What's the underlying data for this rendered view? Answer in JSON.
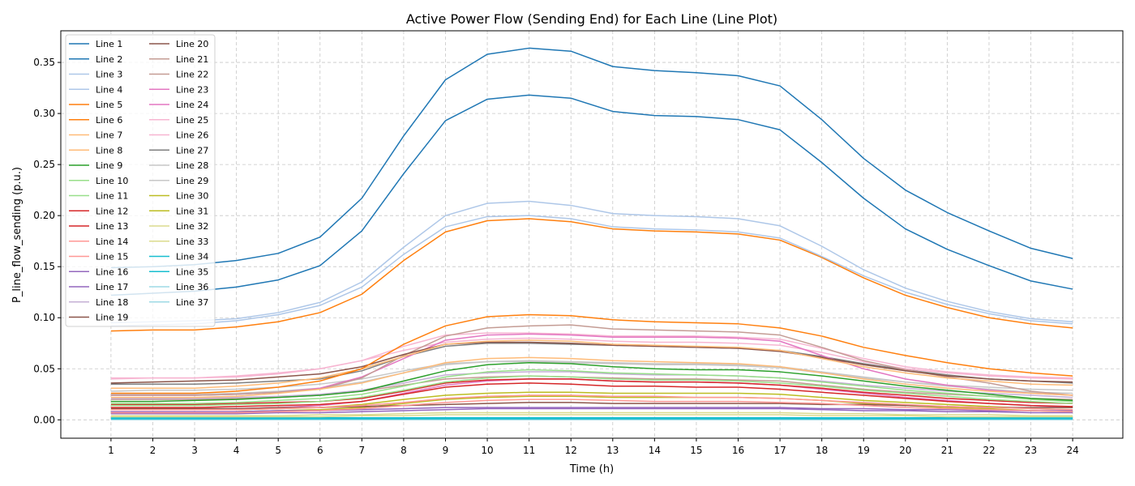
{
  "chart_data": {
    "type": "line",
    "title": "Active Power Flow (Sending End) for Each Line (Line Plot)",
    "xlabel": "Time (h)",
    "ylabel": "P_line_flow_sending (p.u.)",
    "xlim": [
      -0.2,
      25.2
    ],
    "ylim": [
      -0.018,
      0.381
    ],
    "x": [
      1,
      2,
      3,
      4,
      5,
      6,
      7,
      8,
      9,
      10,
      11,
      12,
      13,
      14,
      15,
      16,
      17,
      18,
      19,
      20,
      21,
      22,
      23,
      24
    ],
    "x_ticks": [
      1,
      2,
      3,
      4,
      5,
      6,
      7,
      8,
      9,
      10,
      11,
      12,
      13,
      14,
      15,
      16,
      17,
      18,
      19,
      20,
      21,
      22,
      23,
      24
    ],
    "y_ticks": [
      0.0,
      0.05,
      0.1,
      0.15,
      0.2,
      0.25,
      0.3,
      0.35
    ],
    "y_tick_labels": [
      "0.00",
      "0.05",
      "0.10",
      "0.15",
      "0.20",
      "0.25",
      "0.30",
      "0.35"
    ],
    "grid": true,
    "legend_position": "upper-left",
    "legend_columns": 2,
    "series": [
      {
        "name": "Line 1",
        "color": "#1f77b4",
        "values": [
          0.149,
          0.15,
          0.152,
          0.156,
          0.163,
          0.179,
          0.217,
          0.278,
          0.333,
          0.358,
          0.364,
          0.361,
          0.346,
          0.342,
          0.34,
          0.337,
          0.327,
          0.294,
          0.256,
          0.225,
          0.203,
          0.185,
          0.168,
          0.158
        ]
      },
      {
        "name": "Line 2",
        "color": "#1f77b4",
        "values": [
          0.122,
          0.124,
          0.126,
          0.13,
          0.137,
          0.151,
          0.185,
          0.241,
          0.293,
          0.314,
          0.318,
          0.315,
          0.302,
          0.298,
          0.297,
          0.294,
          0.284,
          0.252,
          0.217,
          0.187,
          0.167,
          0.151,
          0.136,
          0.128
        ]
      },
      {
        "name": "Line 3",
        "color": "#aec7e8",
        "values": [
          0.095,
          0.096,
          0.097,
          0.099,
          0.105,
          0.115,
          0.135,
          0.169,
          0.2,
          0.212,
          0.214,
          0.21,
          0.202,
          0.2,
          0.199,
          0.197,
          0.19,
          0.17,
          0.147,
          0.129,
          0.116,
          0.106,
          0.099,
          0.096
        ]
      },
      {
        "name": "Line 4",
        "color": "#aec7e8",
        "values": [
          0.092,
          0.093,
          0.094,
          0.097,
          0.103,
          0.112,
          0.13,
          0.162,
          0.189,
          0.199,
          0.2,
          0.197,
          0.189,
          0.187,
          0.186,
          0.184,
          0.178,
          0.16,
          0.141,
          0.125,
          0.113,
          0.104,
          0.097,
          0.094
        ]
      },
      {
        "name": "Line 5",
        "color": "#ff7f0e",
        "values": [
          0.087,
          0.088,
          0.088,
          0.091,
          0.096,
          0.105,
          0.123,
          0.156,
          0.184,
          0.195,
          0.197,
          0.194,
          0.187,
          0.185,
          0.184,
          0.182,
          0.176,
          0.159,
          0.139,
          0.122,
          0.11,
          0.1,
          0.094,
          0.09
        ]
      },
      {
        "name": "Line 6",
        "color": "#ff7f0e",
        "values": [
          0.026,
          0.026,
          0.026,
          0.028,
          0.032,
          0.038,
          0.05,
          0.074,
          0.092,
          0.101,
          0.103,
          0.102,
          0.098,
          0.096,
          0.095,
          0.094,
          0.09,
          0.082,
          0.071,
          0.063,
          0.056,
          0.05,
          0.046,
          0.043
        ]
      },
      {
        "name": "Line 7",
        "color": "#ffbb78",
        "values": [
          0.031,
          0.031,
          0.031,
          0.033,
          0.036,
          0.041,
          0.05,
          0.062,
          0.074,
          0.077,
          0.078,
          0.077,
          0.074,
          0.073,
          0.072,
          0.071,
          0.068,
          0.06,
          0.052,
          0.046,
          0.041,
          0.038,
          0.035,
          0.034
        ]
      },
      {
        "name": "Line 8",
        "color": "#ffbb78",
        "values": [
          0.022,
          0.022,
          0.022,
          0.023,
          0.026,
          0.03,
          0.036,
          0.046,
          0.056,
          0.06,
          0.061,
          0.06,
          0.058,
          0.057,
          0.056,
          0.055,
          0.052,
          0.046,
          0.04,
          0.035,
          0.031,
          0.028,
          0.026,
          0.024
        ]
      },
      {
        "name": "Line 9",
        "color": "#2ca02c",
        "values": [
          0.018,
          0.018,
          0.019,
          0.02,
          0.022,
          0.024,
          0.028,
          0.038,
          0.048,
          0.054,
          0.056,
          0.055,
          0.052,
          0.05,
          0.049,
          0.049,
          0.047,
          0.043,
          0.038,
          0.033,
          0.029,
          0.025,
          0.021,
          0.019
        ]
      },
      {
        "name": "Line 10",
        "color": "#98df8a",
        "values": [
          0.016,
          0.016,
          0.016,
          0.017,
          0.019,
          0.021,
          0.025,
          0.033,
          0.042,
          0.047,
          0.049,
          0.048,
          0.046,
          0.045,
          0.044,
          0.043,
          0.041,
          0.037,
          0.033,
          0.029,
          0.026,
          0.023,
          0.02,
          0.018
        ]
      },
      {
        "name": "Line 11",
        "color": "#98df8a",
        "values": [
          0.014,
          0.014,
          0.014,
          0.015,
          0.016,
          0.018,
          0.022,
          0.029,
          0.037,
          0.041,
          0.043,
          0.042,
          0.04,
          0.039,
          0.039,
          0.038,
          0.036,
          0.033,
          0.029,
          0.026,
          0.023,
          0.02,
          0.018,
          0.016
        ]
      },
      {
        "name": "Line 12",
        "color": "#d62728",
        "values": [
          0.015,
          0.015,
          0.015,
          0.016,
          0.017,
          0.018,
          0.021,
          0.028,
          0.036,
          0.039,
          0.04,
          0.04,
          0.038,
          0.037,
          0.037,
          0.036,
          0.034,
          0.031,
          0.027,
          0.024,
          0.021,
          0.019,
          0.017,
          0.016
        ]
      },
      {
        "name": "Line 13",
        "color": "#d62728",
        "values": [
          0.012,
          0.012,
          0.012,
          0.013,
          0.014,
          0.015,
          0.018,
          0.025,
          0.032,
          0.035,
          0.036,
          0.035,
          0.033,
          0.033,
          0.032,
          0.032,
          0.03,
          0.027,
          0.024,
          0.021,
          0.018,
          0.016,
          0.014,
          0.013
        ]
      },
      {
        "name": "Line 14",
        "color": "#ff9896",
        "values": [
          0.01,
          0.01,
          0.01,
          0.01,
          0.011,
          0.012,
          0.014,
          0.017,
          0.021,
          0.023,
          0.024,
          0.024,
          0.023,
          0.023,
          0.022,
          0.022,
          0.021,
          0.019,
          0.017,
          0.015,
          0.013,
          0.012,
          0.011,
          0.01
        ]
      },
      {
        "name": "Line 15",
        "color": "#ff9896",
        "values": [
          0.007,
          0.007,
          0.007,
          0.007,
          0.008,
          0.009,
          0.011,
          0.014,
          0.017,
          0.019,
          0.02,
          0.02,
          0.019,
          0.018,
          0.018,
          0.018,
          0.017,
          0.016,
          0.014,
          0.012,
          0.011,
          0.01,
          0.009,
          0.008
        ]
      },
      {
        "name": "Line 16",
        "color": "#9467bd",
        "values": [
          0.006,
          0.006,
          0.006,
          0.006,
          0.007,
          0.007,
          0.008,
          0.009,
          0.01,
          0.011,
          0.011,
          0.011,
          0.011,
          0.011,
          0.011,
          0.011,
          0.011,
          0.01,
          0.009,
          0.009,
          0.008,
          0.008,
          0.007,
          0.007
        ]
      },
      {
        "name": "Line 17",
        "color": "#9467bd",
        "values": [
          0.008,
          0.008,
          0.008,
          0.008,
          0.009,
          0.009,
          0.01,
          0.011,
          0.012,
          0.012,
          0.012,
          0.012,
          0.012,
          0.012,
          0.012,
          0.012,
          0.012,
          0.011,
          0.011,
          0.01,
          0.01,
          0.009,
          0.009,
          0.009
        ]
      },
      {
        "name": "Line 18",
        "color": "#c5b0d5",
        "values": [
          0.021,
          0.021,
          0.021,
          0.022,
          0.023,
          0.025,
          0.029,
          0.036,
          0.044,
          0.046,
          0.047,
          0.047,
          0.045,
          0.044,
          0.044,
          0.043,
          0.041,
          0.038,
          0.034,
          0.031,
          0.028,
          0.026,
          0.024,
          0.022
        ]
      },
      {
        "name": "Line 19",
        "color": "#8c564b",
        "values": [
          0.036,
          0.037,
          0.038,
          0.039,
          0.042,
          0.045,
          0.052,
          0.064,
          0.074,
          0.076,
          0.076,
          0.075,
          0.073,
          0.072,
          0.071,
          0.07,
          0.067,
          0.061,
          0.054,
          0.048,
          0.043,
          0.04,
          0.038,
          0.037
        ]
      },
      {
        "name": "Line 20",
        "color": "#8c564b",
        "values": [
          0.011,
          0.011,
          0.011,
          0.011,
          0.012,
          0.012,
          0.013,
          0.014,
          0.015,
          0.016,
          0.017,
          0.017,
          0.016,
          0.016,
          0.016,
          0.016,
          0.016,
          0.015,
          0.015,
          0.014,
          0.013,
          0.012,
          0.012,
          0.012
        ]
      },
      {
        "name": "Line 21",
        "color": "#c49c94",
        "values": [
          0.024,
          0.024,
          0.024,
          0.025,
          0.027,
          0.03,
          0.041,
          0.063,
          0.082,
          0.09,
          0.092,
          0.093,
          0.089,
          0.088,
          0.087,
          0.086,
          0.083,
          0.071,
          0.058,
          0.049,
          0.042,
          0.036,
          0.028,
          0.024
        ]
      },
      {
        "name": "Line 22",
        "color": "#c49c94",
        "values": [
          0.02,
          0.02,
          0.02,
          0.021,
          0.022,
          0.024,
          0.028,
          0.034,
          0.04,
          0.042,
          0.043,
          0.042,
          0.041,
          0.04,
          0.04,
          0.039,
          0.038,
          0.034,
          0.03,
          0.027,
          0.025,
          0.023,
          0.021,
          0.02
        ]
      },
      {
        "name": "Line 23",
        "color": "#e377c2",
        "values": [
          0.024,
          0.024,
          0.024,
          0.025,
          0.027,
          0.031,
          0.042,
          0.06,
          0.078,
          0.083,
          0.084,
          0.083,
          0.081,
          0.081,
          0.081,
          0.08,
          0.077,
          0.063,
          0.05,
          0.04,
          0.034,
          0.029,
          0.026,
          0.024
        ]
      },
      {
        "name": "Line 24",
        "color": "#e377c2",
        "values": [
          0.01,
          0.01,
          0.01,
          0.011,
          0.012,
          0.014,
          0.018,
          0.026,
          0.034,
          0.038,
          0.04,
          0.04,
          0.038,
          0.037,
          0.037,
          0.036,
          0.034,
          0.03,
          0.026,
          0.022,
          0.019,
          0.016,
          0.014,
          0.012
        ]
      },
      {
        "name": "Line 25",
        "color": "#f7b6d2",
        "values": [
          0.041,
          0.041,
          0.041,
          0.042,
          0.045,
          0.05,
          0.058,
          0.072,
          0.083,
          0.085,
          0.085,
          0.084,
          0.082,
          0.082,
          0.082,
          0.081,
          0.079,
          0.07,
          0.06,
          0.052,
          0.047,
          0.044,
          0.042,
          0.041
        ]
      },
      {
        "name": "Line 26",
        "color": "#f7b6d2",
        "values": [
          0.04,
          0.041,
          0.041,
          0.043,
          0.046,
          0.05,
          0.058,
          0.068,
          0.076,
          0.079,
          0.08,
          0.079,
          0.077,
          0.076,
          0.076,
          0.075,
          0.073,
          0.066,
          0.057,
          0.05,
          0.046,
          0.043,
          0.041,
          0.04
        ]
      },
      {
        "name": "Line 27",
        "color": "#7f7f7f",
        "values": [
          0.035,
          0.035,
          0.035,
          0.036,
          0.038,
          0.04,
          0.048,
          0.062,
          0.072,
          0.075,
          0.075,
          0.074,
          0.073,
          0.072,
          0.071,
          0.07,
          0.068,
          0.062,
          0.055,
          0.049,
          0.044,
          0.04,
          0.038,
          0.036
        ]
      },
      {
        "name": "Line 28",
        "color": "#c7c7c7",
        "values": [
          0.028,
          0.029,
          0.029,
          0.03,
          0.032,
          0.035,
          0.04,
          0.048,
          0.055,
          0.057,
          0.057,
          0.056,
          0.055,
          0.054,
          0.054,
          0.053,
          0.051,
          0.046,
          0.041,
          0.037,
          0.034,
          0.032,
          0.03,
          0.029
        ]
      },
      {
        "name": "Line 29",
        "color": "#c7c7c7",
        "values": [
          0.025,
          0.025,
          0.025,
          0.026,
          0.028,
          0.031,
          0.037,
          0.046,
          0.054,
          0.057,
          0.058,
          0.057,
          0.056,
          0.055,
          0.055,
          0.054,
          0.052,
          0.047,
          0.042,
          0.037,
          0.033,
          0.03,
          0.027,
          0.026
        ]
      },
      {
        "name": "Line 30",
        "color": "#bcbd22",
        "values": [
          0.01,
          0.01,
          0.01,
          0.01,
          0.011,
          0.012,
          0.015,
          0.02,
          0.024,
          0.026,
          0.027,
          0.027,
          0.026,
          0.026,
          0.026,
          0.026,
          0.025,
          0.022,
          0.019,
          0.017,
          0.015,
          0.013,
          0.011,
          0.01
        ]
      },
      {
        "name": "Line 31",
        "color": "#bcbd22",
        "values": [
          0.008,
          0.008,
          0.008,
          0.008,
          0.009,
          0.01,
          0.012,
          0.016,
          0.02,
          0.022,
          0.023,
          0.023,
          0.022,
          0.022,
          0.022,
          0.022,
          0.021,
          0.019,
          0.016,
          0.014,
          0.012,
          0.011,
          0.009,
          0.008
        ]
      },
      {
        "name": "Line 32",
        "color": "#dbdb8d",
        "values": [
          0.004,
          0.004,
          0.004,
          0.004,
          0.004,
          0.005,
          0.005,
          0.006,
          0.007,
          0.007,
          0.007,
          0.007,
          0.007,
          0.007,
          0.007,
          0.007,
          0.007,
          0.006,
          0.006,
          0.005,
          0.005,
          0.005,
          0.004,
          0.004
        ]
      },
      {
        "name": "Line 33",
        "color": "#dbdb8d",
        "values": [
          0.003,
          0.003,
          0.003,
          0.003,
          0.003,
          0.003,
          0.004,
          0.004,
          0.005,
          0.005,
          0.005,
          0.005,
          0.005,
          0.005,
          0.005,
          0.005,
          0.005,
          0.004,
          0.004,
          0.004,
          0.003,
          0.003,
          0.003,
          0.003
        ]
      },
      {
        "name": "Line 34",
        "color": "#17becf",
        "values": [
          0.002,
          0.002,
          0.002,
          0.002,
          0.002,
          0.002,
          0.002,
          0.002,
          0.002,
          0.002,
          0.002,
          0.002,
          0.002,
          0.002,
          0.002,
          0.002,
          0.002,
          0.002,
          0.002,
          0.002,
          0.002,
          0.002,
          0.002,
          0.002
        ]
      },
      {
        "name": "Line 35",
        "color": "#17becf",
        "values": [
          0.001,
          0.001,
          0.001,
          0.001,
          0.001,
          0.001,
          0.001,
          0.001,
          0.001,
          0.001,
          0.001,
          0.001,
          0.001,
          0.001,
          0.001,
          0.001,
          0.001,
          0.001,
          0.001,
          0.001,
          0.001,
          0.001,
          0.001,
          0.001
        ]
      },
      {
        "name": "Line 36",
        "color": "#9edae5",
        "values": [
          0.001,
          0.001,
          0.001,
          0.001,
          0.001,
          0.001,
          0.001,
          0.001,
          0.001,
          0.001,
          0.001,
          0.001,
          0.001,
          0.001,
          0.001,
          0.001,
          0.001,
          0.001,
          0.001,
          0.001,
          0.001,
          0.001,
          0.001,
          0.001
        ]
      },
      {
        "name": "Line 37",
        "color": "#9edae5",
        "values": [
          0.0,
          0.0,
          0.0,
          0.0,
          0.0,
          0.0,
          0.0,
          0.0,
          0.0,
          0.0,
          0.0,
          0.0,
          0.0,
          0.0,
          0.0,
          0.0,
          0.0,
          0.0,
          0.0,
          0.0,
          0.0,
          0.0,
          0.0,
          0.0
        ]
      }
    ]
  }
}
